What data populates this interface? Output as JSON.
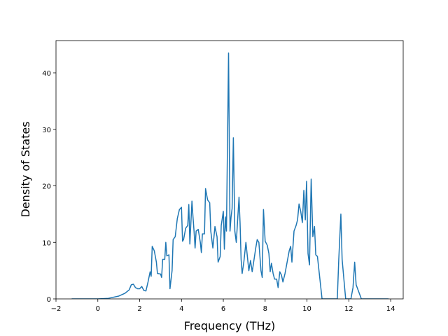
{
  "chart_data": {
    "type": "line",
    "x_label": "Frequency (THz)",
    "y_label": "Density of States",
    "x": [
      -1.25,
      -1,
      0,
      0.5,
      1.0,
      1.3,
      1.5,
      1.6,
      1.7,
      1.8,
      1.9,
      2.0,
      2.1,
      2.2,
      2.3,
      2.4,
      2.5,
      2.55,
      2.6,
      2.7,
      2.8,
      2.85,
      3.0,
      3.05,
      3.1,
      3.2,
      3.25,
      3.3,
      3.4,
      3.45,
      3.55,
      3.6,
      3.7,
      3.8,
      3.9,
      4.0,
      4.05,
      4.1,
      4.2,
      4.3,
      4.35,
      4.4,
      4.5,
      4.55,
      4.6,
      4.65,
      4.7,
      4.8,
      4.9,
      4.95,
      5.0,
      5.1,
      5.15,
      5.25,
      5.35,
      5.4,
      5.5,
      5.6,
      5.7,
      5.75,
      5.85,
      5.9,
      6.0,
      6.05,
      6.1,
      6.15,
      6.25,
      6.32,
      6.37,
      6.42,
      6.48,
      6.55,
      6.62,
      6.75,
      6.8,
      6.85,
      6.9,
      6.98,
      7.08,
      7.15,
      7.22,
      7.3,
      7.38,
      7.45,
      7.55,
      7.62,
      7.7,
      7.8,
      7.86,
      7.92,
      8.0,
      8.1,
      8.18,
      8.24,
      8.3,
      8.38,
      8.45,
      8.55,
      8.62,
      8.7,
      8.78,
      8.85,
      8.95,
      9.05,
      9.15,
      9.22,
      9.28,
      9.38,
      9.48,
      9.55,
      9.62,
      9.7,
      9.78,
      9.85,
      9.92,
      9.98,
      10.05,
      10.12,
      10.2,
      10.28,
      10.36,
      10.42,
      10.5,
      10.72,
      11.45,
      11.52,
      11.62,
      11.68,
      11.8,
      11.85,
      12.1,
      12.2,
      12.28,
      12.35,
      12.45,
      12.6,
      13.9
    ],
    "series": [
      {
        "color": "#1f77b4",
        "values": [
          0,
          0,
          0,
          0.1,
          0.5,
          1.0,
          1.6,
          2.5,
          2.6,
          2.0,
          1.8,
          1.8,
          2.2,
          1.5,
          1.4,
          3.0,
          4.8,
          4.0,
          9.3,
          8.5,
          6.5,
          4.5,
          4.4,
          3.8,
          7.0,
          7.0,
          10.0,
          7.6,
          7.8,
          1.8,
          5.0,
          10.5,
          11.0,
          14.2,
          15.8,
          16.2,
          10.2,
          10.5,
          12.5,
          13.0,
          16.7,
          9.7,
          17.3,
          14.5,
          12.0,
          9.0,
          12.0,
          12.3,
          10.0,
          8.2,
          11.5,
          11.5,
          19.5,
          17.5,
          17.0,
          12.0,
          9.0,
          12.8,
          11.0,
          6.5,
          7.5,
          13.0,
          15.5,
          8.8,
          14.5,
          12.0,
          43.5,
          12.0,
          14.5,
          16.0,
          28.5,
          12.0,
          10.0,
          18.0,
          13.5,
          7.0,
          4.5,
          6.5,
          10.0,
          7.5,
          5.0,
          6.8,
          4.8,
          6.5,
          9.0,
          10.5,
          10.0,
          5.0,
          3.8,
          15.8,
          10.2,
          9.5,
          8.0,
          4.8,
          6.3,
          4.5,
          3.5,
          3.5,
          2.0,
          4.8,
          4.2,
          3.0,
          4.5,
          6.5,
          8.5,
          9.3,
          6.5,
          12.0,
          13.0,
          14.0,
          16.8,
          15.5,
          13.5,
          19.2,
          14.0,
          20.8,
          8.0,
          6.0,
          21.2,
          11.0,
          12.8,
          7.8,
          7.5,
          0,
          0,
          7,
          15.0,
          7.0,
          2.0,
          0,
          0,
          2.0,
          6.5,
          2.5,
          1.5,
          0,
          0
        ]
      }
    ],
    "xlim": [
      -2.0,
      14.6
    ],
    "ylim": [
      0,
      45.7
    ],
    "xticks": [
      {
        "value": -2,
        "label": "−2"
      },
      0,
      2,
      4,
      6,
      8,
      10,
      12,
      14
    ],
    "yticks": [
      0,
      10,
      20,
      30,
      40
    ]
  }
}
